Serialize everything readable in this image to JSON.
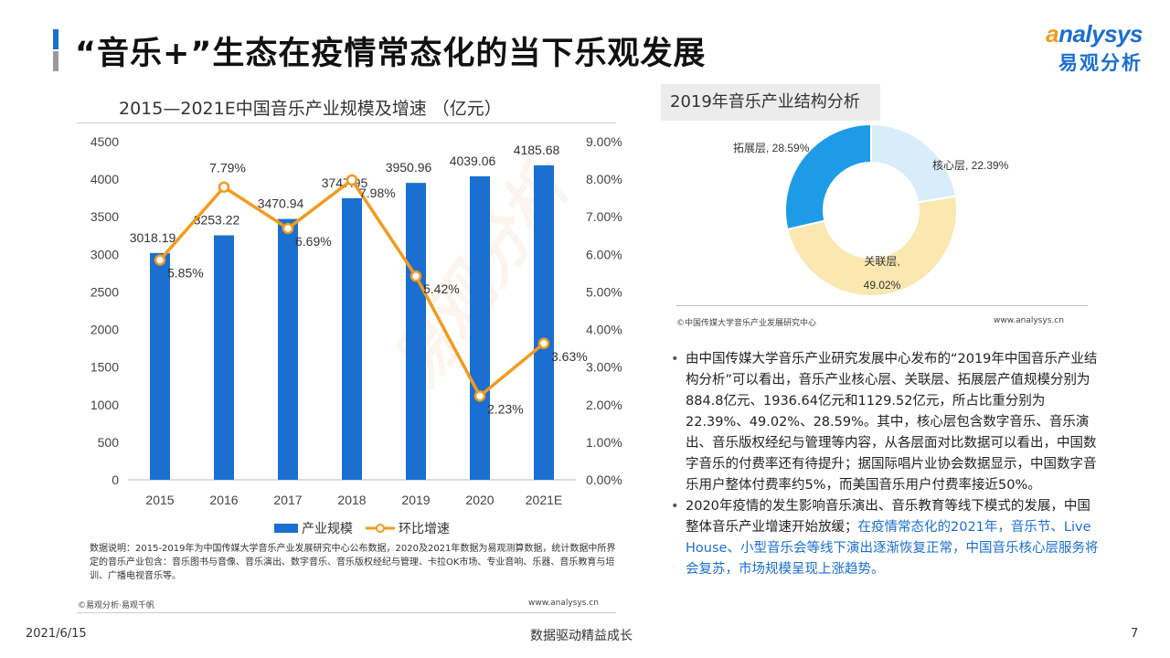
{
  "page": {
    "title": "“音乐+”生态在疫情常态化的当下乐观发展",
    "logo_en": "nalysys",
    "logo_en_first": "a",
    "logo_cn": "易观分析",
    "watermark": "易观分析"
  },
  "left_panel": {
    "chart_title": "2015—2021E中国音乐产业规模及增速 （亿元）",
    "notes": "数据说明：2015-2019年为中国传媒大学音乐产业发展研究中心公布数据，2020及2021年数据为易观测算数据，统计数据中所界定的音乐产业包含：音乐图书与音像、音乐演出、数字音乐、音乐版权经纪与管理、卡拉OK市场、专业音响、乐器、音乐教育与培训、广播电视音乐等。",
    "source_left": "©易观分析·易观千帆",
    "source_right": "www.analysys.cn"
  },
  "right_panel": {
    "donut_title": "2019年音乐产业结构分析",
    "source_left": "©中国传媒大学音乐产业发展研究中心",
    "source_right": "www.analysys.cn",
    "bullets": [
      {
        "text": "由中国传媒大学音乐产业研究发展中心发布的“2019年中国音乐产业结构分析”可以看出，音乐产业核心层、关联层、拓展层产值规模分别为884.8亿元、1936.64亿元和1129.52亿元，所占比重分别为22.39%、49.02%、28.59%。其中，核心层包含数字音乐、音乐演出、音乐版权经纪与管理等内容，从各层面对比数据可以看出，中国数字音乐的付费率还有待提升；据国际唱片业协会数据显示，中国数字音乐用户整体付费率约5%，而美国音乐用户付费率接近50%。"
      },
      {
        "text": "2020年疫情的发生影响音乐演出、音乐教育等线下模式的发展，中国整体音乐产业增速开始放缓；",
        "highlight": "在疫情常态化的2021年，音乐节、Live House、小型音乐会等线下演出逐渐恢复正常，中国音乐核心层服务将会复苏，市场规模呈现上涨趋势。"
      }
    ]
  },
  "footer": {
    "date": "2021/6/15",
    "slogan": "数据驱动精益成长",
    "page_number": "7"
  },
  "colors": {
    "bar": "#1a6fd0",
    "line": "#f39a1e",
    "donut_core": "#d9ecfa",
    "donut_related": "#fbe7b0",
    "donut_expand": "#1e9be6"
  },
  "chart_data": [
    {
      "type": "bar",
      "categories": [
        "2015",
        "2016",
        "2017",
        "2018",
        "2019",
        "2020",
        "2021E"
      ],
      "series": [
        {
          "name": "产业规模",
          "type": "bar",
          "axis": "left",
          "values": [
            3018.19,
            3253.22,
            3470.94,
            3747.95,
            3950.96,
            4039.06,
            4185.68
          ],
          "labels": [
            "3018.19",
            "3253.22",
            "3470.94",
            "3747.95",
            "3950.96",
            "4039.06",
            "4185.68"
          ]
        },
        {
          "name": "环比增速",
          "type": "line",
          "axis": "right",
          "values": [
            5.85,
            7.79,
            6.69,
            7.98,
            5.42,
            2.23,
            3.63
          ],
          "labels": [
            "5.85%",
            "7.79%",
            "6.69%",
            "7.98%",
            "5.42%",
            "2.23%",
            "3.63%"
          ]
        }
      ],
      "ylim_left": [
        0,
        4500
      ],
      "yticks_left": [
        "0",
        "500",
        "1000",
        "1500",
        "2000",
        "2500",
        "3000",
        "3500",
        "4000",
        "4500"
      ],
      "ylim_right": [
        0,
        9
      ],
      "yticks_right": [
        "0.00%",
        "1.00%",
        "2.00%",
        "3.00%",
        "4.00%",
        "5.00%",
        "6.00%",
        "7.00%",
        "8.00%",
        "9.00%"
      ],
      "legend": "bottom",
      "grid": false
    },
    {
      "type": "pie",
      "variant": "donut",
      "categories": [
        "核心层",
        "关联层",
        "拓展层"
      ],
      "values": [
        22.39,
        49.02,
        28.59
      ],
      "labels": [
        "核心层, 22.39%",
        "关联层,\n49.02%",
        "拓展层, 28.59%"
      ]
    }
  ]
}
